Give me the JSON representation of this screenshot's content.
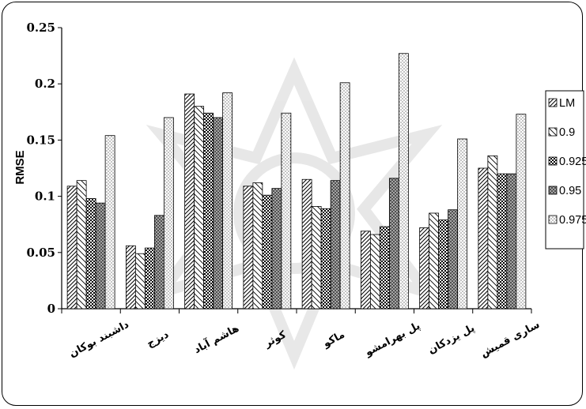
{
  "chart_data": {
    "type": "bar",
    "title": "",
    "xlabel": "",
    "ylabel": "RMSE",
    "ylim": [
      0,
      0.25
    ],
    "yticks": [
      "0",
      "0.05",
      "0.1",
      "0.15",
      "0.2",
      "0.25"
    ],
    "grid": false,
    "legend_position": "right",
    "categories": [
      "داشبند بوکان",
      "دیزج",
      "هاشم آباد",
      "کوثر",
      "ماکو",
      "پل بهرامشو",
      "پل یزدکان",
      "ساری قمیش"
    ],
    "series": [
      {
        "name": "LM",
        "pattern": "diag-right",
        "values": [
          0.109,
          0.056,
          0.191,
          0.109,
          0.115,
          0.069,
          0.072,
          0.125
        ]
      },
      {
        "name": "0.9",
        "pattern": "diag-left",
        "values": [
          0.114,
          0.049,
          0.18,
          0.112,
          0.091,
          0.066,
          0.085,
          0.136
        ]
      },
      {
        "name": "0.925",
        "pattern": "checker",
        "values": [
          0.098,
          0.054,
          0.174,
          0.101,
          0.089,
          0.073,
          0.079,
          0.12
        ]
      },
      {
        "name": "0.95",
        "pattern": "diamond",
        "values": [
          0.094,
          0.083,
          0.17,
          0.107,
          0.114,
          0.116,
          0.088,
          0.12
        ]
      },
      {
        "name": "0.975",
        "pattern": "dots",
        "values": [
          0.154,
          0.17,
          0.192,
          0.174,
          0.201,
          0.227,
          0.151,
          0.173
        ]
      }
    ]
  }
}
